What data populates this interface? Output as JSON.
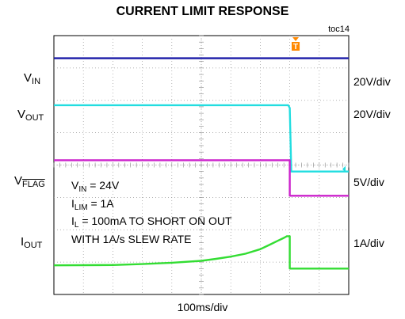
{
  "title": "CURRENT LIMIT RESPONSE",
  "figure_id": "toc14",
  "x_scale": "100ms/div",
  "channels": [
    {
      "name": "VIN",
      "base": "V",
      "sub": "IN",
      "scale": "20V/div",
      "color": "#1a1aa8"
    },
    {
      "name": "VOUT",
      "base": "V",
      "sub": "OUT",
      "scale": "20V/div",
      "color": "#22dde0"
    },
    {
      "name": "VFLAG",
      "base": "V",
      "sub": "FLAG",
      "scale": "5V/div",
      "color": "#cc22cc"
    },
    {
      "name": "IOUT",
      "base": "I",
      "sub": "OUT",
      "scale": "1A/div",
      "color": "#33dd33"
    }
  ],
  "annotation": {
    "vin": {
      "base": "V",
      "sub": "IN",
      "rest": " = 24V"
    },
    "ilim": {
      "base": "I",
      "sub": "LIM",
      "rest": " = 1A"
    },
    "il": {
      "base": "I",
      "sub": "L",
      "rest": " = 100mA TO SHORT ON OUT"
    },
    "slew": "WITH 1A/s SLEW RATE"
  },
  "chart_data": {
    "type": "line",
    "x_divisions": 10,
    "y_divisions": 8,
    "trigger_marker": "T",
    "trigger_division": 8.2,
    "events_division": 8.0,
    "series": [
      {
        "name": "VIN",
        "x": [
          0,
          10
        ],
        "y": [
          24,
          24
        ],
        "level_div": 7.3
      },
      {
        "name": "VOUT",
        "x": [
          0,
          7.95,
          8.0,
          8.05,
          10
        ],
        "y": [
          24,
          24,
          23,
          0,
          0
        ],
        "level_div_high": 5.85,
        "level_div_low": 3.8
      },
      {
        "name": "VFLAG",
        "x": [
          0,
          8.0,
          8.0,
          10
        ],
        "y": [
          5,
          5,
          0,
          0
        ],
        "level_div_high": 4.15,
        "level_div_low": 3.05
      },
      {
        "name": "IOUT",
        "x": [
          0,
          2,
          3,
          4,
          5,
          5.5,
          6,
          6.5,
          7,
          7.3,
          7.6,
          7.8,
          7.9,
          8.0,
          8.0,
          10
        ],
        "y": [
          0.1,
          0.11,
          0.14,
          0.18,
          0.24,
          0.3,
          0.37,
          0.46,
          0.6,
          0.73,
          0.86,
          0.95,
          1.0,
          1.0,
          0.0,
          0.0
        ],
        "zero_div": 0.8,
        "div_per_amp": 1
      }
    ]
  }
}
